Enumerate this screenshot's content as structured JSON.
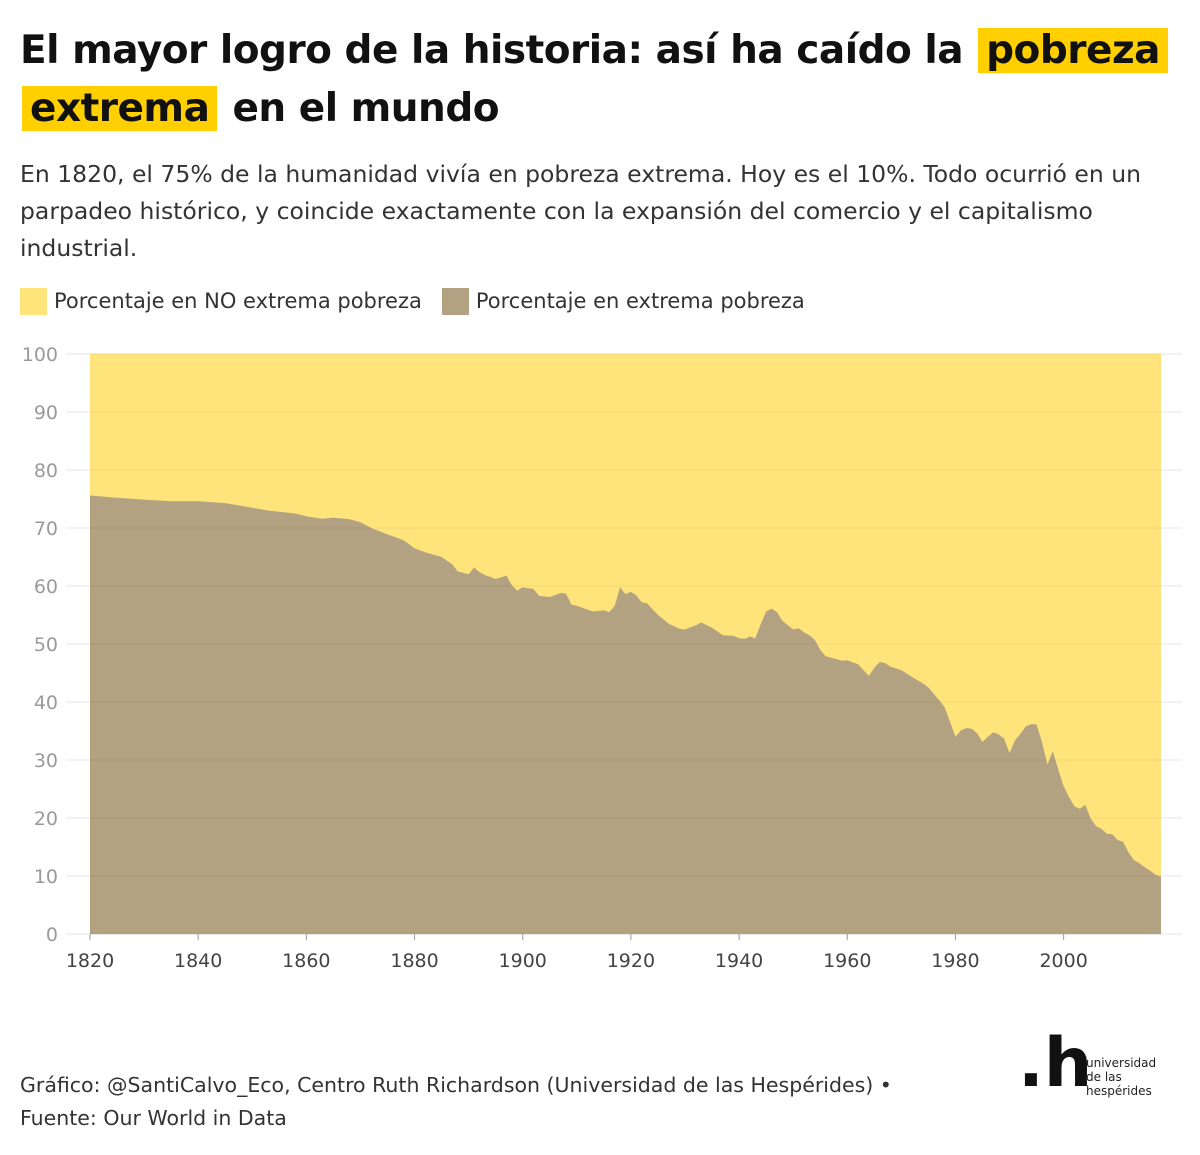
{
  "header": {
    "title_part1": "El mayor logro de la historia: así ha caído la",
    "title_highlight1": "pobreza",
    "title_highlight2": "extrema",
    "title_part2": "en el mundo",
    "subtitle": "En 1820, el 75% de la humanidad vivía en pobreza extrema. Hoy es el 10%. Todo ocurrió en un parpadeo histórico, y coincide exactamente con la expansión del comercio y el capitalismo industrial."
  },
  "legend": {
    "no_poverty": "Porcentaje en NO extrema pobreza",
    "poverty": "Porcentaje en extrema pobreza"
  },
  "colors": {
    "highlight": "#ffcf00",
    "no_poverty": "#ffe47c",
    "poverty": "#b3a281",
    "grid": "#e6e6e6",
    "axis_text": "#9a9a9a",
    "axis_x_text": "#444444"
  },
  "chart_data": {
    "type": "area",
    "stacked": true,
    "xlim": [
      1820,
      2018
    ],
    "ylim": [
      0,
      100
    ],
    "yticks": [
      "0",
      "10",
      "20",
      "30",
      "40",
      "50",
      "60",
      "70",
      "80",
      "90",
      "100"
    ],
    "xticks": [
      "1820",
      "1840",
      "1860",
      "1880",
      "1900",
      "1920",
      "1940",
      "1960",
      "1980",
      "2000"
    ],
    "grid": true,
    "legend_position": "top-left",
    "series": [
      {
        "name": "Porcentaje en extrema pobreza",
        "x": [
          1820,
          1825,
          1830,
          1835,
          1840,
          1845,
          1850,
          1853,
          1858,
          1860,
          1863,
          1865,
          1868,
          1870,
          1872,
          1875,
          1878,
          1880,
          1882,
          1885,
          1887,
          1888,
          1889,
          1890,
          1891,
          1892,
          1893,
          1895,
          1897,
          1898,
          1899,
          1900,
          1901,
          1902,
          1903,
          1905,
          1907,
          1908,
          1909,
          1910,
          1913,
          1915,
          1916,
          1917,
          1918,
          1919,
          1920,
          1921,
          1922,
          1923,
          1924,
          1925,
          1927,
          1929,
          1930,
          1931,
          1932,
          1933,
          1935,
          1937,
          1939,
          1940,
          1941,
          1942,
          1943,
          1944,
          1945,
          1946,
          1947,
          1948,
          1950,
          1951,
          1952,
          1953,
          1954,
          1955,
          1956,
          1958,
          1959,
          1960,
          1962,
          1963,
          1964,
          1965,
          1966,
          1967,
          1968,
          1970,
          1972,
          1974,
          1975,
          1976,
          1977,
          1978,
          1979,
          1980,
          1981,
          1982,
          1983,
          1984,
          1985,
          1986,
          1987,
          1988,
          1989,
          1990,
          1991,
          1992,
          1993,
          1994,
          1995,
          1996,
          1997,
          1998,
          1999,
          2000,
          2001,
          2002,
          2003,
          2004,
          2005,
          2006,
          2007,
          2008,
          2009,
          2010,
          2011,
          2012,
          2013,
          2014,
          2015,
          2016,
          2017,
          2018
        ],
        "values": [
          75.6,
          75.2,
          74.9,
          74.6,
          74.6,
          74.3,
          73.5,
          73.0,
          72.5,
          72.0,
          71.6,
          71.8,
          71.5,
          71.0,
          70.0,
          68.9,
          67.9,
          66.5,
          65.8,
          65.0,
          63.7,
          62.5,
          62.3,
          62.0,
          63.2,
          62.4,
          61.9,
          61.2,
          61.8,
          60.1,
          59.2,
          59.8,
          59.6,
          59.5,
          58.3,
          58.1,
          58.8,
          58.7,
          56.8,
          56.6,
          55.6,
          55.8,
          55.5,
          56.6,
          59.8,
          58.6,
          59.0,
          58.4,
          57.2,
          57.0,
          56.0,
          55.0,
          53.5,
          52.6,
          52.5,
          52.9,
          53.2,
          53.7,
          52.8,
          51.5,
          51.4,
          51.0,
          50.9,
          51.3,
          51.0,
          53.4,
          55.6,
          56.1,
          55.5,
          54.0,
          52.5,
          52.7,
          52.0,
          51.5,
          50.7,
          49.0,
          47.9,
          47.4,
          47.1,
          47.2,
          46.5,
          45.5,
          44.5,
          45.9,
          46.9,
          46.7,
          46.1,
          45.5,
          44.3,
          43.2,
          42.5,
          41.4,
          40.3,
          39.1,
          36.6,
          34.0,
          35.1,
          35.5,
          35.4,
          34.6,
          33.1,
          34.0,
          34.8,
          34.4,
          33.7,
          31.2,
          33.4,
          34.5,
          35.8,
          36.2,
          36.1,
          33.1,
          29.2,
          31.5,
          28.4,
          25.5,
          23.6,
          22.0,
          21.6,
          22.3,
          19.9,
          18.6,
          18.1,
          17.3,
          17.2,
          16.2,
          15.9,
          14.1,
          12.7,
          12.2,
          11.5,
          10.9,
          10.2,
          9.9
        ]
      }
    ]
  },
  "footer": {
    "credit": "Gráfico: @SantiCalvo_Eco, Centro Ruth Richardson (Universidad de las Hespérides) •",
    "source": "Fuente: Our World in Data"
  },
  "logo": {
    "mark": ".h",
    "line1": "universidad",
    "line2": "de las",
    "line3": "hespérides"
  }
}
